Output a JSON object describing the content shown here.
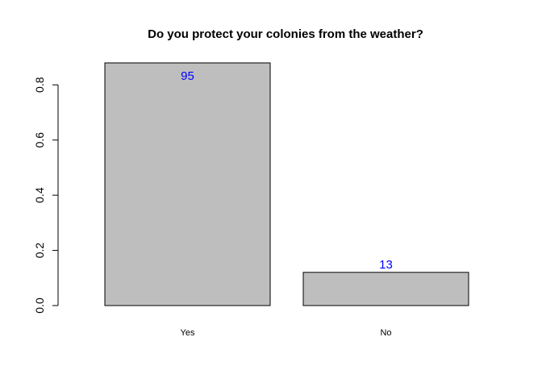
{
  "chart_data": {
    "type": "bar",
    "title": "Do you protect your colonies from the weather?",
    "xlabel": "",
    "ylabel": "",
    "categories": [
      "Yes",
      "No"
    ],
    "values": [
      0.8796,
      0.1204
    ],
    "data_labels": [
      "95",
      "13"
    ],
    "ylim": [
      0,
      0.8796
    ],
    "yticks": [
      0.0,
      0.2,
      0.4,
      0.6,
      0.8
    ],
    "ytick_labels": [
      "0.0",
      "0.2",
      "0.4",
      "0.6",
      "0.8"
    ],
    "grid": false,
    "legend": "none",
    "colors": {
      "bar_fill": "#bebebe",
      "bar_stroke": "#000000",
      "data_label": "#0000ff",
      "axis": "#000000",
      "text": "#000000"
    }
  }
}
